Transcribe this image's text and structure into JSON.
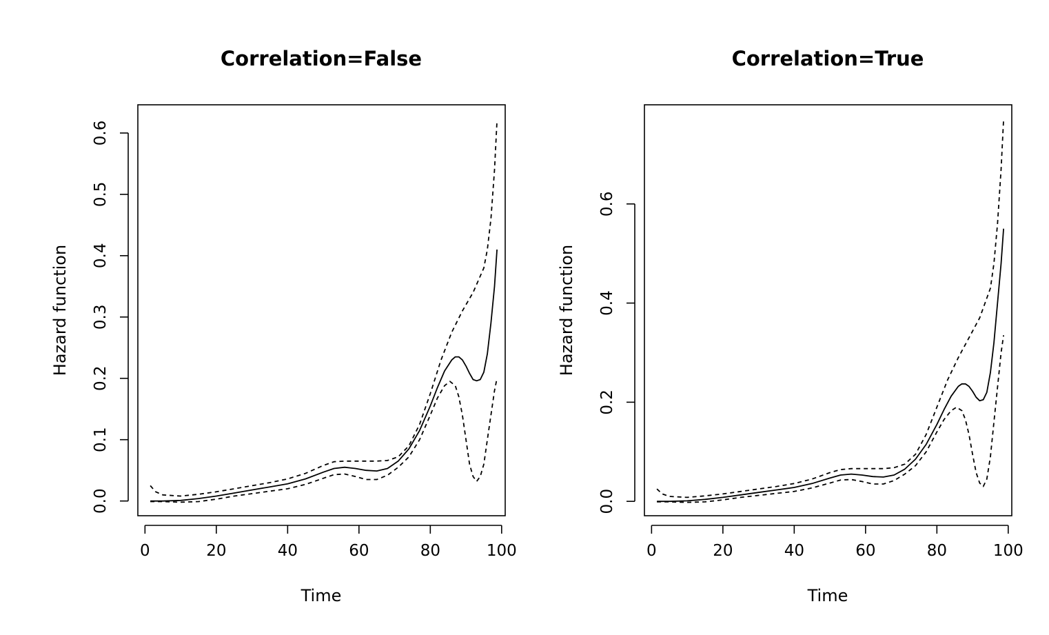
{
  "chart_data": [
    {
      "type": "line",
      "title": "Correlation=False",
      "xlabel": "Time",
      "ylabel": "Hazard function",
      "xlim": [
        -2,
        101
      ],
      "ylim": [
        -0.024,
        0.646
      ],
      "xticks": [
        0,
        20,
        40,
        60,
        80,
        100
      ],
      "yticks": [
        0.0,
        0.1,
        0.2,
        0.3,
        0.4,
        0.5,
        0.6
      ],
      "xtick_labels": [
        "0",
        "20",
        "40",
        "60",
        "80",
        "100"
      ],
      "ytick_labels": [
        "0.0",
        "0.1",
        "0.2",
        "0.3",
        "0.4",
        "0.5",
        "0.6"
      ],
      "grid": false,
      "series": [
        {
          "style": "solid",
          "color": "#000000",
          "x": [
            1.5,
            5,
            10,
            15,
            20,
            25,
            30,
            35,
            40,
            45,
            50,
            53,
            56,
            59,
            62,
            65,
            68,
            71,
            74,
            77,
            80,
            82,
            84,
            86,
            87,
            88,
            89,
            90,
            91,
            92,
            93,
            94,
            95,
            96,
            97,
            98,
            98.7
          ],
          "y": [
            0.0,
            0.0,
            0.001,
            0.004,
            0.008,
            0.013,
            0.018,
            0.023,
            0.028,
            0.036,
            0.047,
            0.053,
            0.055,
            0.053,
            0.05,
            0.049,
            0.053,
            0.065,
            0.085,
            0.115,
            0.155,
            0.185,
            0.212,
            0.23,
            0.235,
            0.235,
            0.23,
            0.22,
            0.208,
            0.198,
            0.196,
            0.198,
            0.21,
            0.24,
            0.29,
            0.35,
            0.41
          ]
        },
        {
          "style": "dashed",
          "color": "#000000",
          "x": [
            1.5,
            3,
            5,
            10,
            15,
            20,
            25,
            30,
            35,
            40,
            45,
            50,
            53,
            56,
            59,
            62,
            65,
            68,
            71,
            74,
            77,
            80,
            83,
            86,
            89,
            92,
            95,
            96,
            97,
            98,
            98.7
          ],
          "y": [
            0.025,
            0.015,
            0.01,
            0.008,
            0.011,
            0.015,
            0.02,
            0.025,
            0.03,
            0.036,
            0.045,
            0.058,
            0.064,
            0.065,
            0.065,
            0.065,
            0.065,
            0.066,
            0.072,
            0.09,
            0.125,
            0.175,
            0.23,
            0.275,
            0.31,
            0.34,
            0.38,
            0.41,
            0.46,
            0.54,
            0.62
          ]
        },
        {
          "style": "dashed",
          "color": "#000000",
          "x": [
            1.5,
            5,
            10,
            15,
            20,
            25,
            30,
            35,
            40,
            45,
            50,
            53,
            56,
            59,
            62,
            65,
            68,
            71,
            74,
            77,
            80,
            82,
            84,
            85.5,
            87,
            88,
            89,
            90,
            91,
            92,
            93,
            94,
            95,
            96,
            97,
            98,
            98.7
          ],
          "y": [
            -0.001,
            -0.001,
            -0.002,
            -0.001,
            0.003,
            0.008,
            0.012,
            0.016,
            0.02,
            0.027,
            0.037,
            0.043,
            0.044,
            0.04,
            0.035,
            0.035,
            0.042,
            0.055,
            0.072,
            0.1,
            0.14,
            0.168,
            0.188,
            0.195,
            0.188,
            0.17,
            0.14,
            0.1,
            0.06,
            0.04,
            0.032,
            0.04,
            0.06,
            0.1,
            0.14,
            0.18,
            0.2
          ]
        }
      ]
    },
    {
      "type": "line",
      "title": "Correlation=True",
      "xlabel": "Time",
      "ylabel": "Hazard function",
      "xlim": [
        -2,
        101
      ],
      "ylim": [
        -0.029,
        0.8
      ],
      "xticks": [
        0,
        20,
        40,
        60,
        80,
        100
      ],
      "yticks": [
        0.0,
        0.2,
        0.4,
        0.6
      ],
      "xtick_labels": [
        "0",
        "20",
        "40",
        "60",
        "80",
        "100"
      ],
      "ytick_labels": [
        "0.0",
        "0.2",
        "0.4",
        "0.6"
      ],
      "grid": false,
      "series": [
        {
          "style": "solid",
          "color": "#000000",
          "x": [
            1.5,
            5,
            10,
            15,
            20,
            25,
            30,
            35,
            40,
            45,
            50,
            53,
            56,
            59,
            62,
            65,
            68,
            71,
            74,
            77,
            80,
            82,
            84,
            86,
            87,
            88,
            89,
            90,
            91,
            92,
            93,
            94,
            95,
            96,
            97,
            98,
            98.7
          ],
          "y": [
            0.0,
            0.0,
            0.001,
            0.004,
            0.008,
            0.013,
            0.018,
            0.023,
            0.028,
            0.036,
            0.047,
            0.053,
            0.055,
            0.053,
            0.05,
            0.049,
            0.053,
            0.065,
            0.085,
            0.115,
            0.155,
            0.185,
            0.212,
            0.232,
            0.237,
            0.237,
            0.232,
            0.222,
            0.21,
            0.203,
            0.205,
            0.22,
            0.26,
            0.32,
            0.4,
            0.48,
            0.55
          ]
        },
        {
          "style": "dashed",
          "color": "#000000",
          "x": [
            1.5,
            3,
            5,
            10,
            15,
            20,
            25,
            30,
            35,
            40,
            45,
            50,
            53,
            56,
            59,
            62,
            65,
            68,
            71,
            74,
            77,
            80,
            83,
            86,
            89,
            92,
            95,
            96,
            97,
            98,
            98.7
          ],
          "y": [
            0.025,
            0.015,
            0.01,
            0.008,
            0.011,
            0.015,
            0.02,
            0.025,
            0.03,
            0.036,
            0.045,
            0.058,
            0.064,
            0.066,
            0.066,
            0.066,
            0.066,
            0.068,
            0.075,
            0.095,
            0.135,
            0.19,
            0.245,
            0.29,
            0.33,
            0.37,
            0.43,
            0.48,
            0.56,
            0.67,
            0.77
          ]
        },
        {
          "style": "dashed",
          "color": "#000000",
          "x": [
            1.5,
            5,
            10,
            15,
            20,
            25,
            30,
            35,
            40,
            45,
            50,
            53,
            56,
            59,
            62,
            65,
            68,
            71,
            74,
            77,
            80,
            82,
            84,
            85.5,
            87,
            88,
            89,
            90,
            91,
            92,
            93,
            94,
            95,
            96,
            97,
            98,
            98.7
          ],
          "y": [
            -0.001,
            -0.001,
            -0.002,
            -0.001,
            0.003,
            0.008,
            0.012,
            0.016,
            0.02,
            0.027,
            0.037,
            0.043,
            0.044,
            0.04,
            0.035,
            0.035,
            0.042,
            0.055,
            0.072,
            0.1,
            0.14,
            0.165,
            0.183,
            0.19,
            0.183,
            0.165,
            0.135,
            0.095,
            0.058,
            0.037,
            0.03,
            0.045,
            0.09,
            0.16,
            0.23,
            0.3,
            0.335
          ]
        }
      ]
    }
  ]
}
